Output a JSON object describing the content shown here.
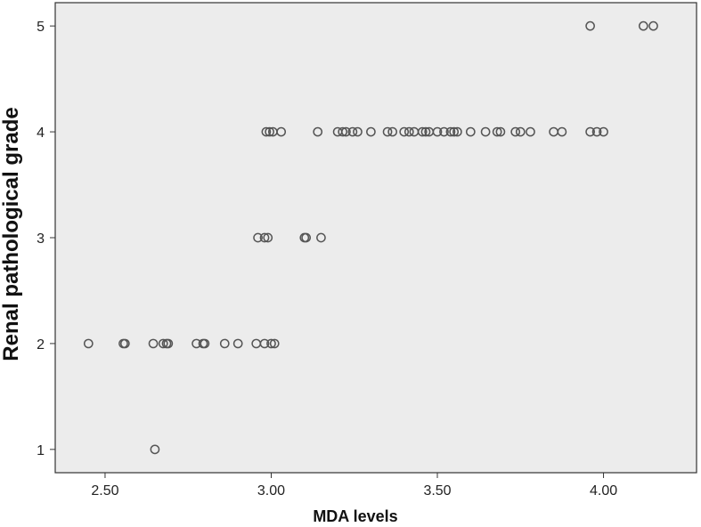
{
  "chart_data": {
    "type": "scatter",
    "title": "",
    "xlabel": "MDA levels",
    "ylabel": "Renal pathological grade",
    "xlim": [
      2.35,
      4.28
    ],
    "ylim": [
      0.78,
      5.22
    ],
    "xticks": [
      2.5,
      3.0,
      3.5,
      4.0
    ],
    "xtick_labels": [
      "2.50",
      "3.00",
      "3.50",
      "4.00"
    ],
    "yticks": [
      1,
      2,
      3,
      4,
      5
    ],
    "ytick_labels": [
      "1",
      "2",
      "3",
      "4",
      "5"
    ],
    "grid": false,
    "legend": "none",
    "colors": {
      "plot_bg": "#ececec",
      "marker_edge": "#555555",
      "frame": "#333333"
    },
    "points": [
      {
        "x": 2.65,
        "y": 1
      },
      {
        "x": 2.45,
        "y": 2
      },
      {
        "x": 2.555,
        "y": 2
      },
      {
        "x": 2.56,
        "y": 2
      },
      {
        "x": 2.645,
        "y": 2
      },
      {
        "x": 2.675,
        "y": 2
      },
      {
        "x": 2.685,
        "y": 2
      },
      {
        "x": 2.69,
        "y": 2
      },
      {
        "x": 2.775,
        "y": 2
      },
      {
        "x": 2.795,
        "y": 2
      },
      {
        "x": 2.8,
        "y": 2
      },
      {
        "x": 2.86,
        "y": 2
      },
      {
        "x": 2.9,
        "y": 2
      },
      {
        "x": 2.955,
        "y": 2
      },
      {
        "x": 2.98,
        "y": 2
      },
      {
        "x": 3.0,
        "y": 2
      },
      {
        "x": 3.01,
        "y": 2
      },
      {
        "x": 2.96,
        "y": 3
      },
      {
        "x": 2.98,
        "y": 3
      },
      {
        "x": 2.99,
        "y": 3
      },
      {
        "x": 3.1,
        "y": 3
      },
      {
        "x": 3.105,
        "y": 3
      },
      {
        "x": 3.15,
        "y": 3
      },
      {
        "x": 2.985,
        "y": 4
      },
      {
        "x": 2.995,
        "y": 4
      },
      {
        "x": 3.005,
        "y": 4
      },
      {
        "x": 3.03,
        "y": 4
      },
      {
        "x": 3.14,
        "y": 4
      },
      {
        "x": 3.2,
        "y": 4
      },
      {
        "x": 3.215,
        "y": 4
      },
      {
        "x": 3.225,
        "y": 4
      },
      {
        "x": 3.245,
        "y": 4
      },
      {
        "x": 3.26,
        "y": 4
      },
      {
        "x": 3.3,
        "y": 4
      },
      {
        "x": 3.35,
        "y": 4
      },
      {
        "x": 3.365,
        "y": 4
      },
      {
        "x": 3.4,
        "y": 4
      },
      {
        "x": 3.415,
        "y": 4
      },
      {
        "x": 3.43,
        "y": 4
      },
      {
        "x": 3.455,
        "y": 4
      },
      {
        "x": 3.465,
        "y": 4
      },
      {
        "x": 3.475,
        "y": 4
      },
      {
        "x": 3.5,
        "y": 4
      },
      {
        "x": 3.52,
        "y": 4
      },
      {
        "x": 3.54,
        "y": 4
      },
      {
        "x": 3.55,
        "y": 4
      },
      {
        "x": 3.56,
        "y": 4
      },
      {
        "x": 3.6,
        "y": 4
      },
      {
        "x": 3.645,
        "y": 4
      },
      {
        "x": 3.68,
        "y": 4
      },
      {
        "x": 3.69,
        "y": 4
      },
      {
        "x": 3.735,
        "y": 4
      },
      {
        "x": 3.75,
        "y": 4
      },
      {
        "x": 3.78,
        "y": 4
      },
      {
        "x": 3.85,
        "y": 4
      },
      {
        "x": 3.875,
        "y": 4
      },
      {
        "x": 3.96,
        "y": 4
      },
      {
        "x": 3.98,
        "y": 4
      },
      {
        "x": 4.0,
        "y": 4
      },
      {
        "x": 3.96,
        "y": 5
      },
      {
        "x": 4.12,
        "y": 5
      },
      {
        "x": 4.15,
        "y": 5
      }
    ]
  }
}
